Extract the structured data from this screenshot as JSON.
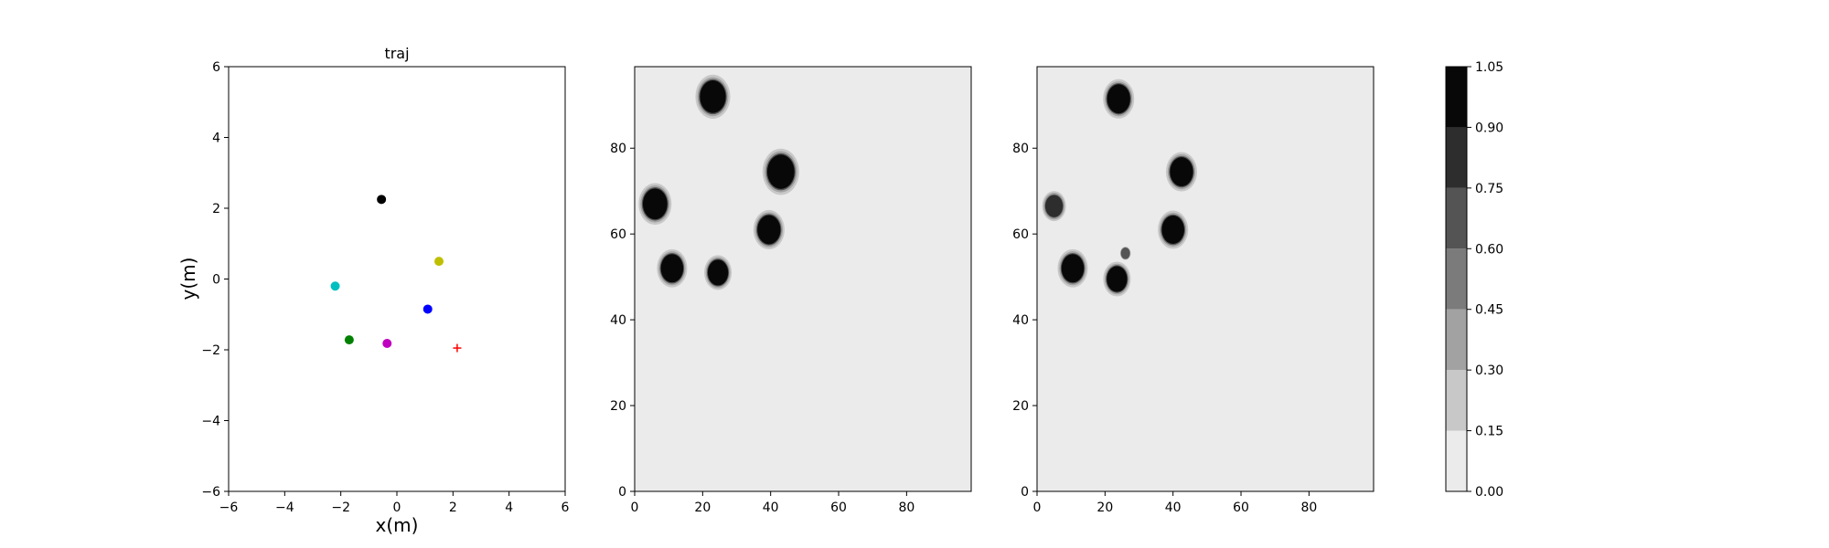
{
  "chart_data": [
    {
      "type": "scatter",
      "title": "traj",
      "xlabel": "x(m)",
      "ylabel": "y(m)",
      "xlim": [
        -6,
        6
      ],
      "ylim": [
        -6,
        6
      ],
      "xticks": [
        -6,
        -4,
        -2,
        0,
        2,
        4,
        6
      ],
      "yticks": [
        -6,
        -4,
        -2,
        0,
        2,
        4,
        6
      ],
      "grid": false,
      "points": [
        {
          "x": -0.55,
          "y": 2.25,
          "color": "#000000",
          "marker": "dot"
        },
        {
          "x": 1.5,
          "y": 0.5,
          "color": "#bfbf00",
          "marker": "dot"
        },
        {
          "x": -2.2,
          "y": -0.2,
          "color": "#00bfbf",
          "marker": "dot"
        },
        {
          "x": 1.1,
          "y": -0.85,
          "color": "#0000ff",
          "marker": "dot"
        },
        {
          "x": -1.7,
          "y": -1.72,
          "color": "#008000",
          "marker": "dot"
        },
        {
          "x": -0.35,
          "y": -1.82,
          "color": "#bf00bf",
          "marker": "dot"
        },
        {
          "x": 2.15,
          "y": -1.95,
          "color": "#ff0000",
          "marker": "plus"
        }
      ]
    },
    {
      "type": "heatmap",
      "xlim": [
        0,
        99
      ],
      "ylim": [
        0,
        99
      ],
      "xticks": [
        0,
        20,
        40,
        60,
        80
      ],
      "yticks": [
        0,
        20,
        40,
        60,
        80
      ],
      "background_value": 0.0,
      "blobs": [
        {
          "x": 23,
          "y": 92,
          "r": 3.8,
          "value": 1.0
        },
        {
          "x": 43,
          "y": 74.5,
          "r": 4.0,
          "value": 1.0
        },
        {
          "x": 6,
          "y": 67,
          "r": 3.6,
          "value": 1.0
        },
        {
          "x": 39.5,
          "y": 61,
          "r": 3.4,
          "value": 1.0
        },
        {
          "x": 11,
          "y": 52,
          "r": 3.3,
          "value": 1.0
        },
        {
          "x": 24.5,
          "y": 51,
          "r": 3.0,
          "value": 1.0
        }
      ]
    },
    {
      "type": "heatmap",
      "xlim": [
        0,
        99
      ],
      "ylim": [
        0,
        99
      ],
      "xticks": [
        0,
        20,
        40,
        60,
        80
      ],
      "yticks": [
        0,
        20,
        40,
        60,
        80
      ],
      "background_value": 0.0,
      "blobs": [
        {
          "x": 24,
          "y": 91.5,
          "r": 3.4,
          "value": 1.0
        },
        {
          "x": 42.5,
          "y": 74.5,
          "r": 3.4,
          "value": 1.0
        },
        {
          "x": 5,
          "y": 66.5,
          "r": 2.6,
          "value": 0.85
        },
        {
          "x": 40,
          "y": 61,
          "r": 3.3,
          "value": 1.0
        },
        {
          "x": 10.5,
          "y": 52,
          "r": 3.3,
          "value": 1.0
        },
        {
          "x": 23.5,
          "y": 49.5,
          "r": 3.0,
          "value": 1.0
        },
        {
          "x": 26,
          "y": 55.5,
          "r": 1.3,
          "value": 0.65
        }
      ]
    },
    {
      "type": "colorbar",
      "levels": [
        0.0,
        0.15,
        0.3,
        0.45,
        0.6,
        0.75,
        0.9,
        1.05
      ],
      "tick_labels": [
        "0.00",
        "0.15",
        "0.30",
        "0.45",
        "0.60",
        "0.75",
        "0.90",
        "1.05"
      ],
      "colors": [
        "#ebebeb",
        "#c8c8c8",
        "#a2a2a2",
        "#7b7b7b",
        "#545454",
        "#2d2d2d",
        "#080808"
      ]
    }
  ]
}
